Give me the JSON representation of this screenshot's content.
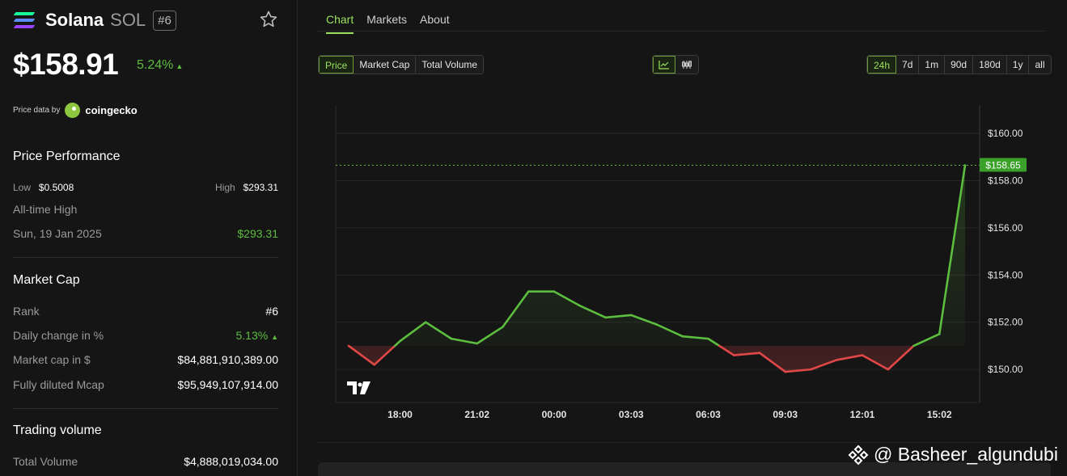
{
  "coin": {
    "name": "Solana",
    "symbol": "SOL",
    "rank_badge": "#6",
    "price": "$158.91",
    "change_24h": "5.24%",
    "up_arrow": "▲",
    "price_data_label": "Price data by",
    "provider": "coingecko"
  },
  "performance": {
    "title": "Price Performance",
    "low_label": "Low",
    "low_value": "$0.5008",
    "high_label": "High",
    "high_value": "$293.31",
    "ath_label": "All-time High",
    "ath_date": "Sun, 19 Jan 2025",
    "ath_value": "$293.31"
  },
  "market_cap": {
    "title": "Market Cap",
    "rows": [
      {
        "label": "Rank",
        "value": "#6"
      },
      {
        "label": "Daily change in %",
        "value": "5.13%"
      },
      {
        "label": "Market cap in $",
        "value": "$84,881,910,389.00"
      },
      {
        "label": "Fully diluted Mcap",
        "value": "$95,949,107,914.00"
      }
    ]
  },
  "trading_volume": {
    "title": "Trading volume",
    "rows": [
      {
        "label": "Total Volume",
        "value": "$4,888,019,034.00"
      }
    ]
  },
  "tabs": [
    "Chart",
    "Markets",
    "About"
  ],
  "metric_buttons": [
    "Price",
    "Market Cap",
    "Total Volume"
  ],
  "range_buttons": [
    "24h",
    "7d",
    "1m",
    "90d",
    "180d",
    "1y",
    "all"
  ],
  "watermark": "@ Basheer_algundubi",
  "colors": {
    "up": "#5cbd3f",
    "down": "#e04848",
    "accent": "#9be15d",
    "background": "#151515"
  },
  "chart_data": {
    "type": "line",
    "x_ticks": [
      "18:00",
      "21:02",
      "00:00",
      "03:03",
      "06:03",
      "09:03",
      "12:01",
      "15:02"
    ],
    "x_tick_index": [
      2,
      5,
      8,
      11,
      14,
      17,
      20,
      23
    ],
    "y_ticks": [
      "$150.00",
      "$152.00",
      "$154.00",
      "$156.00",
      "$158.00",
      "$160.00"
    ],
    "y_tick_values": [
      150,
      152,
      154,
      156,
      158,
      160
    ],
    "ylim": [
      148.6,
      161.2
    ],
    "baseline": 151.0,
    "current_label": "$158.65",
    "current_value": 158.65,
    "series": [
      {
        "values": [
          151.0,
          150.2,
          151.2,
          152.0,
          151.3,
          151.1,
          151.8,
          153.3,
          153.3,
          152.7,
          152.2,
          152.3,
          151.9,
          151.4,
          151.3,
          150.6,
          150.7,
          149.9,
          150.0,
          150.4,
          150.6,
          150.0,
          151.0,
          151.5,
          158.65
        ]
      }
    ]
  }
}
